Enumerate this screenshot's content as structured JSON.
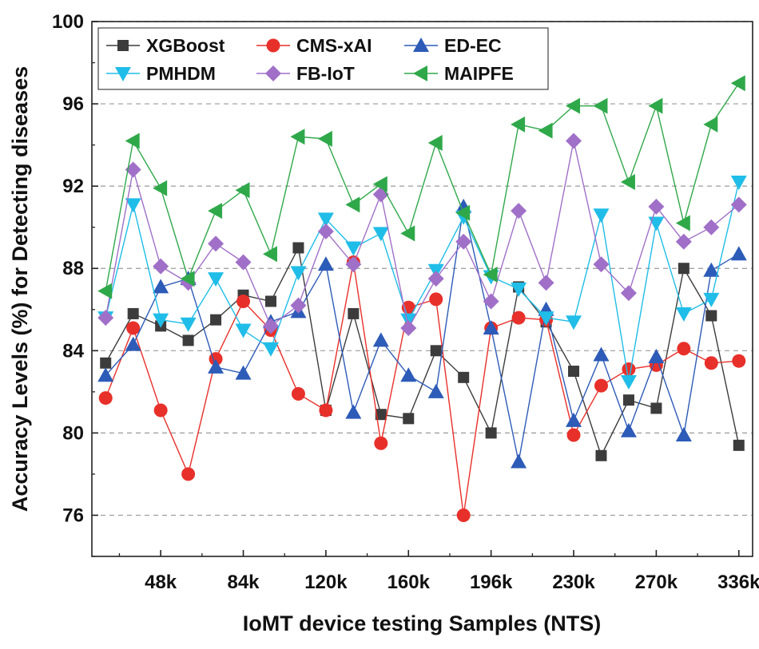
{
  "chart_data": {
    "type": "line",
    "title": "",
    "xlabel": "IoMT device testing Samples (NTS)",
    "ylabel": "Accuracy Levels (%) for Detecting diseases",
    "ylim": [
      74,
      100
    ],
    "xlim": [
      0.5,
      24.5
    ],
    "yticks": [
      76,
      80,
      84,
      88,
      92,
      96,
      100
    ],
    "xticks": [
      {
        "pos": 3,
        "label": "48k"
      },
      {
        "pos": 6,
        "label": "84k"
      },
      {
        "pos": 9,
        "label": "120k"
      },
      {
        "pos": 12,
        "label": "160k"
      },
      {
        "pos": 15,
        "label": "196k"
      },
      {
        "pos": 18,
        "label": "230k"
      },
      {
        "pos": 21,
        "label": "270k"
      },
      {
        "pos": 24,
        "label": "336k"
      }
    ],
    "x": [
      1,
      2,
      3,
      4,
      5,
      6,
      7,
      8,
      9,
      10,
      11,
      12,
      13,
      14,
      15,
      16,
      17,
      18,
      19,
      20,
      21,
      22,
      23,
      24
    ],
    "grid": "y-dashed",
    "legend_position": "top",
    "series": [
      {
        "name": "XGBoost",
        "color": "#3c3c3c",
        "marker": "square",
        "values": [
          83.4,
          85.8,
          85.2,
          84.5,
          85.5,
          86.7,
          86.4,
          89.0,
          81.1,
          85.8,
          80.9,
          80.7,
          84.0,
          82.7,
          80.0,
          87.1,
          85.4,
          83.0,
          78.9,
          81.6,
          81.2,
          88.0,
          85.7,
          79.4
        ]
      },
      {
        "name": "CMS-xAI",
        "color": "#e8302a",
        "marker": "circle",
        "values": [
          81.7,
          85.1,
          81.1,
          78.0,
          83.6,
          86.4,
          85.0,
          81.9,
          81.1,
          88.3,
          79.5,
          86.1,
          86.5,
          76.0,
          85.1,
          85.6,
          85.5,
          79.9,
          82.3,
          83.1,
          83.3,
          84.1,
          83.4,
          83.5
        ]
      },
      {
        "name": "ED-EC",
        "color": "#2d5bb8",
        "marker": "triangle-up",
        "values": [
          82.8,
          84.3,
          87.1,
          87.5,
          83.2,
          82.9,
          85.4,
          85.9,
          88.2,
          81.0,
          84.5,
          82.8,
          82.0,
          91.0,
          85.1,
          78.6,
          86.0,
          80.6,
          83.8,
          80.1,
          83.7,
          79.9,
          87.9,
          88.7
        ]
      },
      {
        "name": "PMHDM",
        "color": "#20bde8",
        "marker": "triangle-down",
        "values": [
          85.6,
          91.1,
          85.5,
          85.3,
          87.5,
          85.0,
          84.1,
          87.8,
          90.4,
          89.0,
          89.7,
          85.5,
          87.9,
          90.5,
          87.6,
          87.0,
          85.6,
          85.4,
          90.6,
          82.5,
          90.2,
          85.8,
          86.5,
          92.2
        ]
      },
      {
        "name": "FB-IoT",
        "color": "#a070c8",
        "marker": "diamond",
        "values": [
          85.6,
          92.8,
          88.1,
          87.3,
          89.2,
          88.3,
          85.2,
          86.2,
          89.8,
          88.2,
          91.6,
          85.1,
          87.5,
          89.3,
          86.4,
          90.8,
          87.3,
          94.2,
          88.2,
          86.8,
          91.0,
          89.3,
          90.0,
          91.1
        ]
      },
      {
        "name": "MAIPFE",
        "color": "#2fa84a",
        "marker": "triangle-left",
        "values": [
          86.9,
          94.2,
          91.9,
          87.5,
          90.8,
          91.8,
          88.7,
          94.4,
          94.3,
          91.1,
          92.1,
          89.7,
          94.1,
          90.7,
          87.7,
          95.0,
          94.7,
          95.9,
          95.9,
          92.2,
          95.9,
          90.2,
          95.0,
          97.0
        ]
      }
    ]
  }
}
